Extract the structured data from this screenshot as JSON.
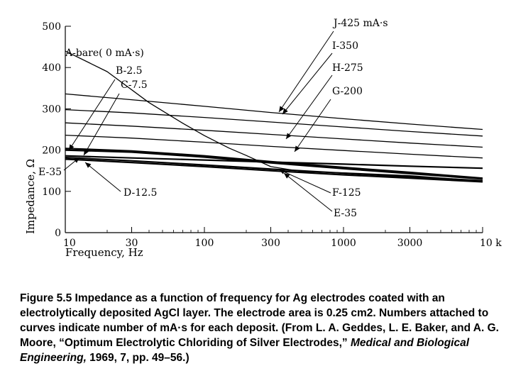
{
  "chart_data": {
    "type": "line",
    "xscale": "log",
    "xlim": [
      10,
      10000
    ],
    "ylim": [
      0,
      500
    ],
    "xticks": [
      10,
      30,
      100,
      300,
      1000,
      3000,
      10000
    ],
    "xtick_labels": [
      "10",
      "30",
      "100",
      "300",
      "1000",
      "3000",
      "10 k"
    ],
    "yticks": [
      0,
      100,
      200,
      300,
      400,
      500
    ],
    "ytick_labels": [
      "0",
      "100",
      "200",
      "300",
      "400",
      "500"
    ],
    "xlabel": "Frequency, Hz",
    "ylabel": "Impedance, Ω",
    "grid": false,
    "series": [
      {
        "name": "A-bare( 0 mA·s)",
        "x": [
          10,
          20,
          40,
          70,
          100,
          150,
          200,
          300,
          500,
          1000,
          3000,
          10000
        ],
        "y": [
          440,
          390,
          315,
          265,
          235,
          205,
          187,
          160,
          148,
          145,
          138,
          125
        ]
      },
      {
        "name": "B-2.5",
        "x": [
          10,
          30,
          100,
          300,
          1000,
          3000,
          10000
        ],
        "y": [
          204,
          198,
          186,
          172,
          158,
          146,
          132
        ]
      },
      {
        "name": "C-7.5",
        "x": [
          10,
          30,
          100,
          300,
          1000,
          3000,
          10000
        ],
        "y": [
          200,
          195,
          183,
          169,
          155,
          143,
          130
        ]
      },
      {
        "name": "D-12.5",
        "x": [
          10,
          30,
          100,
          300,
          1000,
          3000,
          10000
        ],
        "y": [
          178,
          170,
          160,
          150,
          140,
          132,
          123
        ]
      },
      {
        "name": "E-35",
        "x": [
          10,
          30,
          100,
          300,
          1000,
          3000,
          10000
        ],
        "y": [
          182,
          174,
          164,
          154,
          144,
          135,
          126
        ]
      },
      {
        "name": "F-125",
        "x": [
          10,
          30,
          100,
          300,
          1000,
          3000,
          10000
        ],
        "y": [
          186,
          181,
          176,
          171,
          166,
          161,
          156
        ]
      },
      {
        "name": "G-200",
        "x": [
          10,
          30,
          100,
          300,
          1000,
          3000,
          10000
        ],
        "y": [
          236,
          229,
          219,
          209,
          199,
          190,
          181
        ]
      },
      {
        "name": "H-275",
        "x": [
          10,
          30,
          100,
          300,
          1000,
          3000,
          10000
        ],
        "y": [
          266,
          258,
          248,
          238,
          227,
          217,
          207
        ]
      },
      {
        "name": "I-350",
        "x": [
          10,
          30,
          100,
          300,
          1000,
          3000,
          10000
        ],
        "y": [
          298,
          290,
          279,
          268,
          256,
          245,
          234
        ]
      },
      {
        "name": "J-425 mA·s",
        "x": [
          10,
          30,
          100,
          300,
          1000,
          3000,
          10000
        ],
        "y": [
          336,
          322,
          306,
          291,
          276,
          263,
          250
        ]
      }
    ],
    "annotations": [
      "A-bare( 0 mA·s)",
      "B-2.5",
      "C-7.5",
      "D-12.5",
      "E-35",
      "E-35",
      "F-125",
      "G-200",
      "H-275",
      "I-350",
      "J-425 mA·s"
    ]
  },
  "caption": {
    "part1": "Figure 5.5 Impedance as a function of frequency for Ag electrodes coated with an electrolytically deposited AgCl layer. The electrode area is 0.25 cm2. Numbers attached to curves indicate number of mA·s for each deposit. (From L. A. Geddes, L. E. Baker, and A. G. Moore, “Optimum Electrolytic Chloriding of Silver Electrodes,” ",
    "journal": "Medical and Biological Engineering,",
    "part2": " 1969, 7, pp. 49–56.)"
  }
}
